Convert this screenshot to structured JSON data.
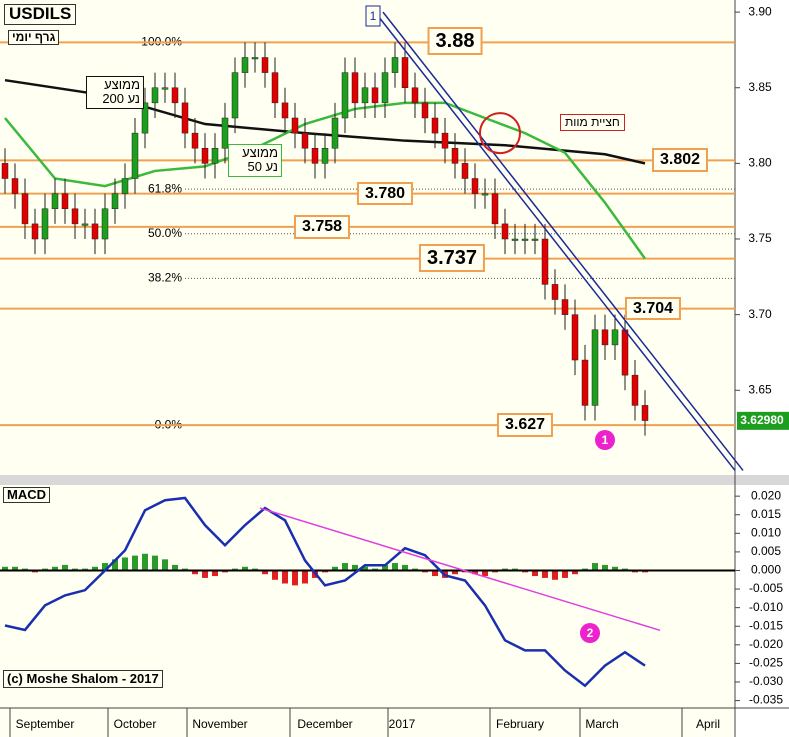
{
  "chart_data": [
    {
      "type": "candlestick",
      "title": "USDILS",
      "subtitle": "גרף יומי",
      "xlim": [
        -0.5,
        73
      ],
      "ylim": [
        3.594,
        3.908
      ],
      "yticks": [
        {
          "value": 3.9,
          "label": "3.90"
        },
        {
          "value": 3.85,
          "label": "3.85"
        },
        {
          "value": 3.8,
          "label": "3.80"
        },
        {
          "value": 3.75,
          "label": "3.75"
        },
        {
          "value": 3.7,
          "label": "3.70"
        },
        {
          "value": 3.65,
          "label": "3.65"
        }
      ],
      "up_color": "#1e9e1e",
      "down_color": "#e00000",
      "open": [
        3.8,
        3.79,
        3.78,
        3.76,
        3.75,
        3.77,
        3.78,
        3.77,
        3.76,
        3.76,
        3.75,
        3.77,
        3.78,
        3.79,
        3.82,
        3.84,
        3.85,
        3.85,
        3.84,
        3.82,
        3.81,
        3.8,
        3.81,
        3.83,
        3.86,
        3.87,
        3.87,
        3.86,
        3.84,
        3.83,
        3.82,
        3.81,
        3.8,
        3.81,
        3.83,
        3.86,
        3.84,
        3.85,
        3.84,
        3.86,
        3.87,
        3.85,
        3.84,
        3.83,
        3.82,
        3.81,
        3.8,
        3.79,
        3.78,
        3.78,
        3.76,
        3.75,
        3.75,
        3.75,
        3.75,
        3.72,
        3.71,
        3.7,
        3.67,
        3.64,
        3.69,
        3.68,
        3.69,
        3.66,
        3.64
      ],
      "high": [
        3.81,
        3.8,
        3.79,
        3.77,
        3.78,
        3.79,
        3.79,
        3.78,
        3.77,
        3.77,
        3.78,
        3.79,
        3.8,
        3.83,
        3.85,
        3.86,
        3.86,
        3.86,
        3.85,
        3.83,
        3.82,
        3.82,
        3.84,
        3.87,
        3.88,
        3.88,
        3.88,
        3.87,
        3.85,
        3.84,
        3.83,
        3.82,
        3.82,
        3.84,
        3.87,
        3.87,
        3.86,
        3.86,
        3.87,
        3.88,
        3.88,
        3.86,
        3.85,
        3.84,
        3.83,
        3.82,
        3.81,
        3.8,
        3.79,
        3.79,
        3.77,
        3.76,
        3.76,
        3.76,
        3.76,
        3.73,
        3.72,
        3.71,
        3.68,
        3.7,
        3.7,
        3.7,
        3.7,
        3.67,
        3.65
      ],
      "low": [
        3.78,
        3.77,
        3.75,
        3.74,
        3.74,
        3.76,
        3.76,
        3.75,
        3.75,
        3.74,
        3.74,
        3.76,
        3.77,
        3.78,
        3.81,
        3.83,
        3.84,
        3.83,
        3.81,
        3.8,
        3.79,
        3.79,
        3.8,
        3.82,
        3.85,
        3.86,
        3.85,
        3.83,
        3.82,
        3.81,
        3.8,
        3.79,
        3.79,
        3.8,
        3.82,
        3.83,
        3.83,
        3.83,
        3.83,
        3.85,
        3.84,
        3.83,
        3.82,
        3.81,
        3.8,
        3.79,
        3.78,
        3.77,
        3.77,
        3.75,
        3.74,
        3.74,
        3.74,
        3.74,
        3.71,
        3.7,
        3.69,
        3.66,
        3.63,
        3.63,
        3.67,
        3.67,
        3.65,
        3.63,
        3.62
      ],
      "close": [
        3.79,
        3.78,
        3.76,
        3.75,
        3.77,
        3.78,
        3.77,
        3.76,
        3.76,
        3.75,
        3.77,
        3.78,
        3.79,
        3.82,
        3.84,
        3.85,
        3.85,
        3.84,
        3.82,
        3.81,
        3.8,
        3.81,
        3.83,
        3.86,
        3.87,
        3.87,
        3.86,
        3.84,
        3.83,
        3.82,
        3.81,
        3.8,
        3.81,
        3.83,
        3.86,
        3.84,
        3.85,
        3.84,
        3.86,
        3.87,
        3.85,
        3.84,
        3.83,
        3.82,
        3.81,
        3.8,
        3.79,
        3.78,
        3.78,
        3.76,
        3.75,
        3.75,
        3.75,
        3.75,
        3.72,
        3.71,
        3.7,
        3.67,
        3.64,
        3.69,
        3.68,
        3.69,
        3.66,
        3.64,
        3.63
      ],
      "moving_averages": [
        {
          "name": "ממוצע נע 200",
          "color": "#111111",
          "x": [
            0,
            10,
            20,
            30,
            40,
            50,
            60,
            64
          ],
          "values": [
            3.855,
            3.845,
            3.826,
            3.82,
            3.815,
            3.812,
            3.806,
            3.8
          ]
        },
        {
          "name": "ממוצע נע 50",
          "color": "#3cb93c",
          "x": [
            0,
            5,
            10,
            15,
            20,
            25,
            30,
            35,
            40,
            44,
            48,
            52,
            56,
            60,
            64
          ],
          "values": [
            3.83,
            3.79,
            3.785,
            3.795,
            3.798,
            3.81,
            3.826,
            3.836,
            3.84,
            3.84,
            3.83,
            3.82,
            3.807,
            3.774,
            3.737
          ]
        }
      ],
      "levels": {
        "color": "#f0a050",
        "values": [
          3.88,
          3.802,
          3.78,
          3.758,
          3.737,
          3.704,
          3.627
        ],
        "value_labels": [
          "3.88",
          "3.802",
          "3.780",
          "3.758",
          "3.737",
          "3.704",
          "3.627"
        ]
      },
      "fibonacci": {
        "values": [
          3.88,
          3.783,
          3.7535,
          3.724,
          3.627
        ],
        "labels": [
          "100.0%",
          "61.8%",
          "50.0%",
          "38.2%",
          "0.0%"
        ]
      },
      "channel": {
        "label": "1",
        "color": "#1a2a9a",
        "lines": [
          {
            "x": [
              37,
              73
            ],
            "values": [
              3.9,
              3.597
            ]
          },
          {
            "x": [
              37.8,
              73.8
            ],
            "values": [
              3.9,
              3.597
            ]
          }
        ]
      },
      "annotation": {
        "text": "חציית מוות",
        "x": 49.5,
        "value": 3.82
      },
      "last_price": {
        "value": 3.6298,
        "label": "3.62980"
      },
      "marker": "1"
    },
    {
      "type": "macd",
      "title": "MACD",
      "copyright": "(c) Moshe Shalom - 2017",
      "xlim": [
        -0.5,
        73
      ],
      "ylim": [
        -0.037,
        0.023
      ],
      "yticks": [
        {
          "value": 0.02,
          "label": "0.020"
        },
        {
          "value": 0.015,
          "label": "0.015"
        },
        {
          "value": 0.01,
          "label": "0.010"
        },
        {
          "value": 0.005,
          "label": "0.005"
        },
        {
          "value": 0,
          "label": "0.000"
        },
        {
          "value": -0.005,
          "label": "-0.005"
        },
        {
          "value": -0.01,
          "label": "-0.010"
        },
        {
          "value": -0.015,
          "label": "-0.015"
        },
        {
          "value": -0.02,
          "label": "-0.020"
        },
        {
          "value": -0.025,
          "label": "-0.025"
        },
        {
          "value": -0.03,
          "label": "-0.030"
        },
        {
          "value": -0.035,
          "label": "-0.035"
        }
      ],
      "macd": {
        "color": "#1a2fb0",
        "x": [
          0,
          2,
          4,
          6,
          8,
          10,
          12,
          14,
          16,
          18,
          20,
          22,
          24,
          26,
          28,
          30,
          32,
          34,
          36,
          38,
          40,
          42,
          44,
          46,
          48,
          50,
          52,
          54,
          56,
          58,
          60,
          62,
          64
        ],
        "values": [
          -0.0148,
          -0.016,
          -0.0094,
          -0.0067,
          -0.0053,
          0.0,
          0.0054,
          0.0162,
          0.0189,
          0.0195,
          0.0122,
          0.0068,
          0.0122,
          0.0168,
          0.0135,
          0.0027,
          -0.004,
          -0.0027,
          0.0014,
          0.0014,
          0.006,
          0.0041,
          -0.0013,
          -0.0027,
          -0.0094,
          -0.0188,
          -0.0215,
          -0.0215,
          -0.0269,
          -0.031,
          -0.0256,
          -0.022,
          -0.0256
        ]
      },
      "histogram": {
        "up_color": "#2a9a2a",
        "down_color": "#e02020",
        "values": [
          0.001,
          0.001,
          0.0005,
          -0.0005,
          0.0005,
          0.001,
          0.0015,
          0.0005,
          0.0005,
          0.001,
          0.002,
          0.003,
          0.0035,
          0.004,
          0.0045,
          0.004,
          0.003,
          0.0015,
          0.0005,
          -0.001,
          -0.002,
          -0.0015,
          -0.0005,
          0.0005,
          0.001,
          0.0005,
          -0.001,
          -0.0025,
          -0.0035,
          -0.004,
          -0.0035,
          -0.002,
          -0.0005,
          0.001,
          0.002,
          0.0015,
          0.001,
          0.0005,
          0.0015,
          0.002,
          0.0015,
          0.0005,
          -0.0005,
          -0.0015,
          -0.002,
          -0.001,
          -0.0005,
          -0.001,
          -0.0015,
          -0.0005,
          0.0005,
          0.0005,
          -0.0005,
          -0.0015,
          -0.002,
          -0.0025,
          -0.002,
          -0.001,
          0.0005,
          0.002,
          0.0015,
          0.001,
          0.0005,
          -0.0005,
          -0.0005
        ]
      },
      "trendline": {
        "color": "#e040e0",
        "x": [
          25.5,
          65.5
        ],
        "values": [
          0.0168,
          -0.0161
        ]
      },
      "marker": "2",
      "x_labels": [
        "September",
        "October",
        "November",
        "December",
        "2017",
        "February",
        "March",
        "April"
      ]
    }
  ]
}
